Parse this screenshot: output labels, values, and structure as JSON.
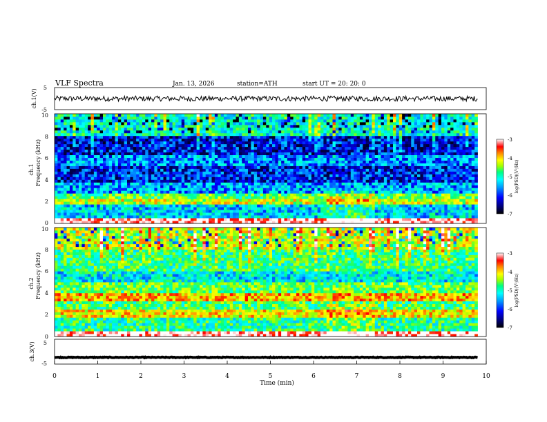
{
  "header": {
    "title": "VLF  Spectra",
    "date": "Jan. 13, 2026",
    "station": "station=ATH",
    "start": "start  UT  =   20: 20: 0"
  },
  "colors": {
    "background": "#ffffff",
    "trace": "#000000",
    "colormap": [
      "#000000",
      "#00007a",
      "#0000ff",
      "#00a0ff",
      "#00ffff",
      "#00ff80",
      "#a0ff00",
      "#ffff00",
      "#ff8000",
      "#ff0000",
      "#ffffff"
    ]
  },
  "chart_data": [
    {
      "type": "line",
      "name": "ch1-waveform",
      "ylabel": "ch.1(V)",
      "ylim": [
        -5,
        5
      ],
      "yticks": [
        "5",
        "-5"
      ],
      "x_range_min": [
        0,
        9.8
      ],
      "baseline_v": 0,
      "amplitude_v": 1.2
    },
    {
      "type": "heatmap",
      "name": "ch1-spectrogram",
      "ylabel_top": "ch.1",
      "ylabel": "Frequency (kHz)",
      "ylim_khz": [
        0,
        10
      ],
      "yticks": [
        "0",
        "2",
        "4",
        "6",
        "8",
        "10"
      ],
      "x_range_min": [
        0,
        9.8
      ],
      "colorbar": {
        "label": "log(PSD)(V²/Hz)",
        "min": -7,
        "max": -3,
        "ticks": [
          "-3",
          "-4",
          "-5",
          "-6",
          "-7"
        ]
      },
      "bands_log_psd": [
        {
          "f_khz": [
            0.0,
            0.4
          ],
          "level": -3.0
        },
        {
          "f_khz": [
            0.4,
            1.6
          ],
          "level": -5.5
        },
        {
          "f_khz": [
            1.6,
            2.2
          ],
          "level": -4.4
        },
        {
          "f_khz": [
            2.2,
            2.6
          ],
          "level": -4.8
        },
        {
          "f_khz": [
            2.6,
            3.6
          ],
          "level": -5.7
        },
        {
          "f_khz": [
            3.6,
            5.2
          ],
          "level": -6.2
        },
        {
          "f_khz": [
            5.2,
            6.2
          ],
          "level": -5.8
        },
        {
          "f_khz": [
            6.2,
            8.0
          ],
          "level": -6.3
        },
        {
          "f_khz": [
            8.0,
            10.0
          ],
          "level": -5.3
        }
      ]
    },
    {
      "type": "heatmap",
      "name": "ch2-spectrogram",
      "ylabel_top": "ch.2",
      "ylabel": "Frequency (kHz)",
      "ylim_khz": [
        0,
        10
      ],
      "yticks": [
        "0",
        "2",
        "4",
        "6",
        "8",
        "10"
      ],
      "x_range_min": [
        0,
        9.8
      ],
      "colorbar": {
        "label": "log(PSD)(V²/Hz)",
        "min": -7,
        "max": -3,
        "ticks": [
          "-3",
          "-4",
          "-5",
          "-6",
          "-7"
        ]
      },
      "bands_log_psd": [
        {
          "f_khz": [
            0.0,
            0.4
          ],
          "level": -3.0
        },
        {
          "f_khz": [
            0.4,
            1.6
          ],
          "level": -5.1
        },
        {
          "f_khz": [
            1.6,
            2.4
          ],
          "level": -4.2
        },
        {
          "f_khz": [
            2.4,
            3.2
          ],
          "level": -4.9
        },
        {
          "f_khz": [
            3.2,
            3.8
          ],
          "level": -4.0
        },
        {
          "f_khz": [
            3.8,
            5.0
          ],
          "level": -4.8
        },
        {
          "f_khz": [
            5.0,
            6.0
          ],
          "level": -5.4
        },
        {
          "f_khz": [
            6.0,
            8.0
          ],
          "level": -5.0
        },
        {
          "f_khz": [
            8.0,
            10.0
          ],
          "level": -4.4
        }
      ]
    },
    {
      "type": "line",
      "name": "ch3-waveform",
      "ylabel": "ch.3(V)",
      "ylim": [
        -5,
        5
      ],
      "yticks": [
        "5",
        "-5"
      ],
      "x_range_min": [
        0,
        9.8
      ],
      "baseline_v": -2.3,
      "amplitude_v": 0.15
    }
  ],
  "xaxis": {
    "label": "Time  (min)",
    "range": [
      0,
      10
    ],
    "ticks": [
      "0",
      "1",
      "2",
      "3",
      "4",
      "5",
      "6",
      "7",
      "8",
      "9",
      "10"
    ]
  }
}
